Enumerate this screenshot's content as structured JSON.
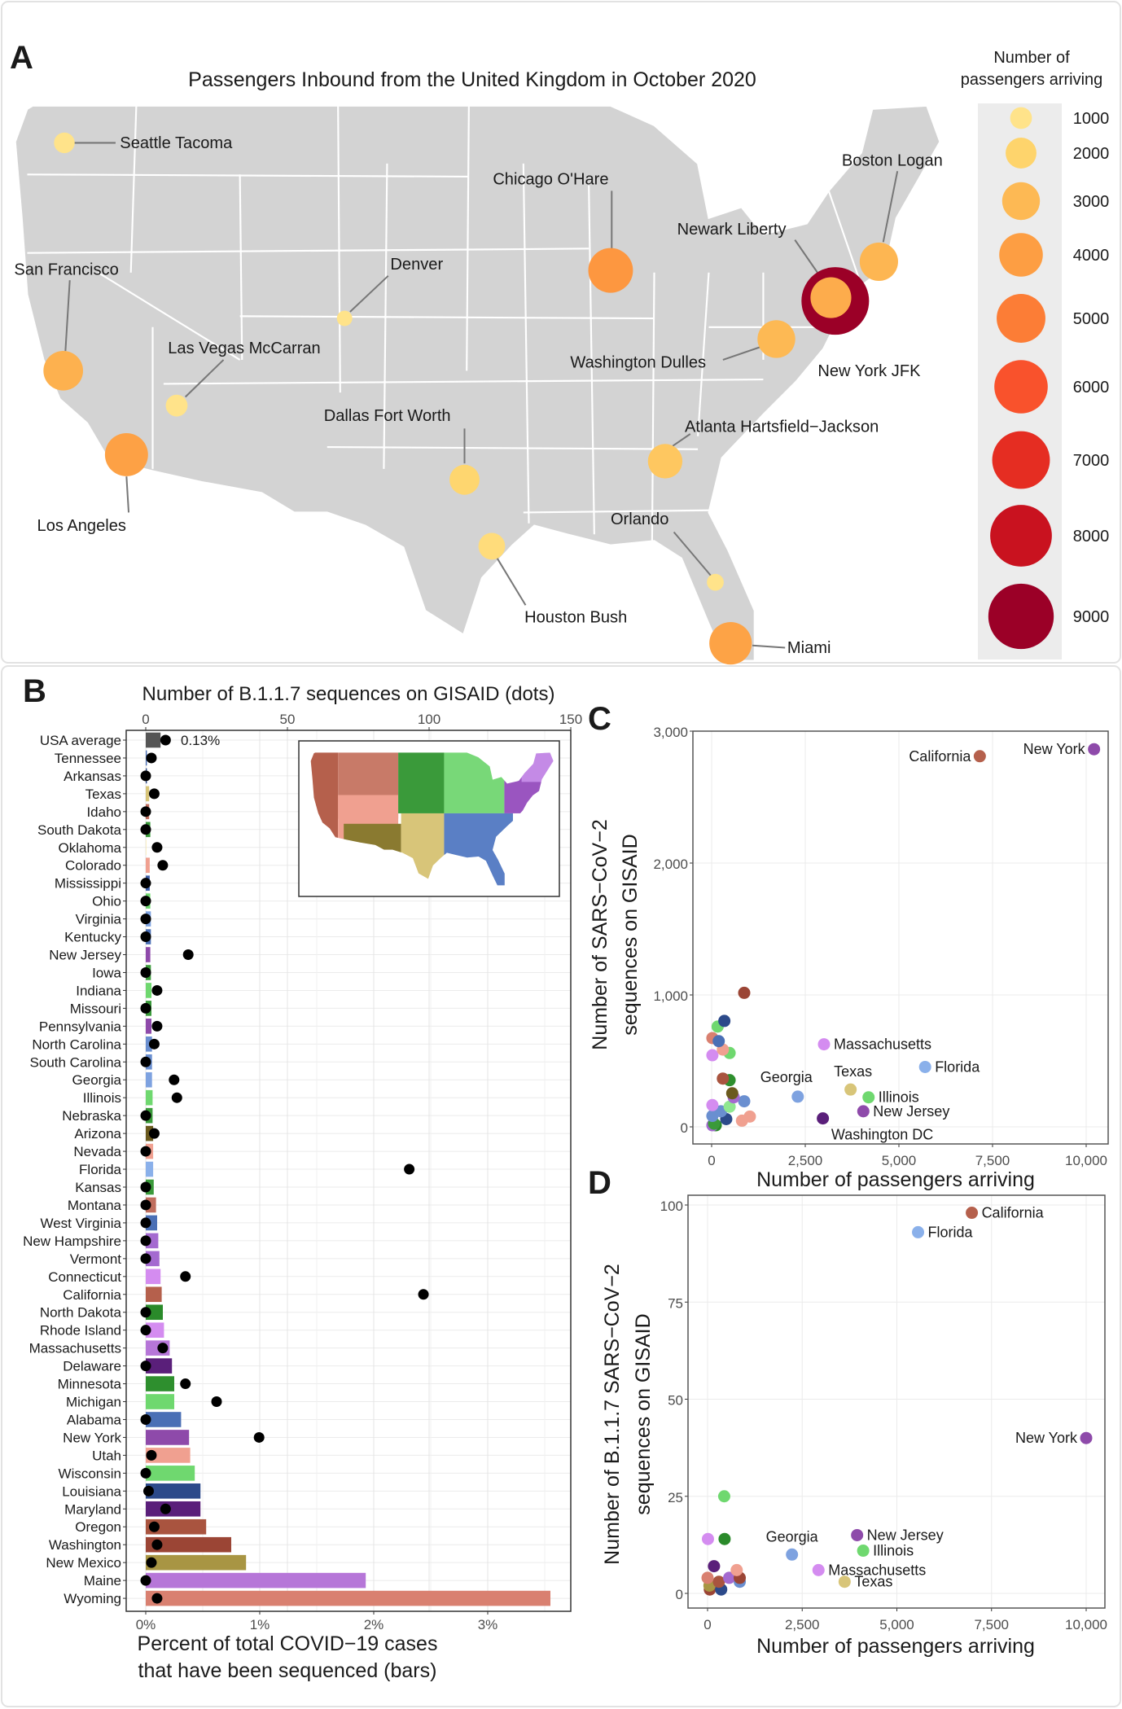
{
  "panel_a": {
    "letter": "A",
    "title": "Passengers Inbound from the United Kingdom in October 2020",
    "legend": {
      "title_line1": "Number of",
      "title_line2": "passengers arriving",
      "values": [
        1000,
        2000,
        3000,
        4000,
        5000,
        6000,
        7000,
        8000,
        9000
      ],
      "colors": [
        "#ffe38a",
        "#fed46c",
        "#fdb954",
        "#fd9e43",
        "#fc7d36",
        "#f9522c",
        "#e52d22",
        "#c9121f",
        "#9b0027"
      ]
    },
    "map_fill": "#d3d3d3",
    "airports": [
      {
        "name": "Seattle Tacoma",
        "value": 900
      },
      {
        "name": "San Francisco",
        "value": 3300
      },
      {
        "name": "Los Angeles",
        "value": 3900
      },
      {
        "name": "Las Vegas McCarran",
        "value": 1000
      },
      {
        "name": "Denver",
        "value": 500
      },
      {
        "name": "Dallas Fort Worth",
        "value": 1900
      },
      {
        "name": "Houston Bush",
        "value": 1500
      },
      {
        "name": "Chicago O'Hare",
        "value": 4200
      },
      {
        "name": "Atlanta Hartsfield−Jackson",
        "value": 2500
      },
      {
        "name": "Orlando",
        "value": 600
      },
      {
        "name": "Miami",
        "value": 3800
      },
      {
        "name": "Washington Dulles",
        "value": 3000
      },
      {
        "name": "Newark Liberty",
        "value": 3500
      },
      {
        "name": "New York JFK",
        "value": 9600
      },
      {
        "name": "Boston Logan",
        "value": 3100
      }
    ]
  },
  "chart_data": [
    {
      "panel": "B",
      "type": "bar",
      "orientation": "horizontal",
      "title": "Number of B.1.1.7 sequences on GISAID (dots)",
      "xlabel_line1": "Percent of total COVID−19 cases",
      "xlabel_line2": "that have been sequenced (bars)",
      "bar_ticks": [
        "0%",
        "1%",
        "2%",
        "3%"
      ],
      "bar_tick_values": [
        0,
        1,
        2,
        3
      ],
      "dot_ticks": [
        "0",
        "50",
        "100",
        "150"
      ],
      "dot_tick_values": [
        0,
        50,
        100,
        150
      ],
      "dot_range": [
        0,
        150
      ],
      "usa_label": "0.13%",
      "grid": true,
      "categories": [
        "USA average",
        "Tennessee",
        "Arkansas",
        "Texas",
        "Idaho",
        "South Dakota",
        "Oklahoma",
        "Colorado",
        "Mississippi",
        "Ohio",
        "Virginia",
        "Kentucky",
        "New Jersey",
        "Iowa",
        "Indiana",
        "Missouri",
        "Pennsylvania",
        "North Carolina",
        "South Carolina",
        "Georgia",
        "Illinois",
        "Nebraska",
        "Arizona",
        "Nevada",
        "Florida",
        "Kansas",
        "Montana",
        "West Virginia",
        "New Hampshire",
        "Vermont",
        "Connecticut",
        "California",
        "North Dakota",
        "Rhode Island",
        "Massachusetts",
        "Delaware",
        "Minnesota",
        "Michigan",
        "Alabama",
        "New York",
        "Utah",
        "Wisconsin",
        "Louisiana",
        "Maryland",
        "Oregon",
        "Washington",
        "New Mexico",
        "Maine",
        "Wyoming"
      ],
      "series": [
        {
          "name": "Percent of total COVID−19 cases that have been sequenced (bars)",
          "values": [
            0.13,
            0.01,
            0.01,
            0.03,
            0.03,
            0.04,
            0.0,
            0.035,
            0.035,
            0.04,
            0.045,
            0.045,
            0.04,
            0.045,
            0.05,
            0.05,
            0.05,
            0.055,
            0.055,
            0.055,
            0.06,
            0.06,
            0.065,
            0.065,
            0.065,
            0.07,
            0.09,
            0.1,
            0.11,
            0.12,
            0.13,
            0.14,
            0.15,
            0.16,
            0.21,
            0.23,
            0.25,
            0.25,
            0.31,
            0.38,
            0.39,
            0.43,
            0.48,
            0.48,
            0.53,
            0.75,
            0.88,
            1.93,
            3.55
          ]
        },
        {
          "name": "Number of B.1.1.7 sequences on GISAID (dots)",
          "values": [
            7,
            2,
            0,
            3,
            0,
            0,
            4,
            6,
            0,
            0,
            0,
            0,
            15,
            0,
            4,
            0,
            4,
            3,
            0,
            10,
            11,
            0,
            3,
            0,
            93,
            0,
            0,
            0,
            0,
            0,
            14,
            98,
            0,
            0,
            6,
            0,
            14,
            25,
            0,
            40,
            2,
            0,
            1,
            7,
            3,
            4,
            2,
            0,
            4
          ]
        }
      ],
      "colors": [
        "#555555",
        "#4a6fb5",
        "#2c4a8a",
        "#d8c579",
        "#c06e5e",
        "#3a9a3a",
        "#f7e28d",
        "#f0a090",
        "#3d5ea8",
        "#6fd86f",
        "#7ea2e0",
        "#4a6fb5",
        "#8e4aaa",
        "#3a9a3a",
        "#6fd86f",
        "#3a9a3a",
        "#8e4aaa",
        "#6a8fd0",
        "#6a8fd0",
        "#7ea2e0",
        "#6fd86f",
        "#3a9a3a",
        "#6b5a1e",
        "#f0a090",
        "#8ab0ea",
        "#3a9a3a",
        "#c06e5e",
        "#4a6fb5",
        "#a46ad0",
        "#a46ad0",
        "#d48cf0",
        "#b5604c",
        "#2a8a2a",
        "#d48cf0",
        "#b676d8",
        "#5a1f7a",
        "#2e8f2e",
        "#6fd86f",
        "#4a6fb5",
        "#8e4aaa",
        "#f0a090",
        "#6fd86f",
        "#2c4a8a",
        "#5a1f7a",
        "#a9543f",
        "#9b4535",
        "#a89543",
        "#b676d8",
        "#d98070"
      ]
    },
    {
      "panel": "C",
      "type": "scatter",
      "xlabel": "Number of passengers arriving",
      "ylabel_line1": "Number of SARS−CoV−2",
      "ylabel_line2": "sequences on GISAID",
      "xlim": [
        -500,
        10500
      ],
      "ylim": [
        -100,
        3000
      ],
      "xticks": [
        0,
        2500,
        5000,
        7500,
        10000
      ],
      "xtick_labels": [
        "0",
        "2,500",
        "5,000",
        "7,500",
        "10,000"
      ],
      "yticks": [
        0,
        1000,
        2000,
        3000
      ],
      "ytick_labels": [
        "0",
        "1,000",
        "2,000",
        "3,000"
      ],
      "grid": true,
      "points": [
        {
          "x": 7160,
          "y": 2810,
          "color": "#b5604c",
          "label": "California"
        },
        {
          "x": 10210,
          "y": 2863,
          "color": "#8e4aaa",
          "label": "New York"
        },
        {
          "x": 3000,
          "y": 626,
          "color": "#d48cf0",
          "label": "Massachusetts"
        },
        {
          "x": 5700,
          "y": 454,
          "color": "#8ab0ea",
          "label": "Florida"
        },
        {
          "x": 2300,
          "y": 229,
          "color": "#7ea2e0",
          "label": "Georgia"
        },
        {
          "x": 3710,
          "y": 283,
          "color": "#d8c579",
          "label": "Texas"
        },
        {
          "x": 4190,
          "y": 224,
          "color": "#6fd86f",
          "label": "Illinois"
        },
        {
          "x": 4050,
          "y": 118,
          "color": "#8e4aaa",
          "label": "New Jersey"
        },
        {
          "x": 2970,
          "y": 64,
          "color": "#5a1f7a",
          "label": "Washington DC"
        },
        {
          "x": 870,
          "y": 1016,
          "color": "#9b4535"
        },
        {
          "x": 340,
          "y": 803,
          "color": "#2c4a8a"
        },
        {
          "x": 160,
          "y": 760,
          "color": "#6fd86f"
        },
        {
          "x": 190,
          "y": 650,
          "color": "#4a6fb5"
        },
        {
          "x": 20,
          "y": 673,
          "color": "#d98070"
        },
        {
          "x": 300,
          "y": 586,
          "color": "#f0a090"
        },
        {
          "x": 480,
          "y": 560,
          "color": "#6fd86f"
        },
        {
          "x": 20,
          "y": 543,
          "color": "#d48cf0"
        },
        {
          "x": 300,
          "y": 366,
          "color": "#a9543f"
        },
        {
          "x": 480,
          "y": 354,
          "color": "#2e8f2e"
        },
        {
          "x": 550,
          "y": 255,
          "color": "#6b5a1e"
        },
        {
          "x": 590,
          "y": 224,
          "color": "#a46ad0"
        },
        {
          "x": 870,
          "y": 194,
          "color": "#6a8fd0"
        },
        {
          "x": 20,
          "y": 165,
          "color": "#d48cf0"
        },
        {
          "x": 480,
          "y": 153,
          "color": "#90e890"
        },
        {
          "x": 250,
          "y": 118,
          "color": "#6a8fd0"
        },
        {
          "x": 20,
          "y": 83,
          "color": "#6a8fd0"
        },
        {
          "x": 390,
          "y": 59,
          "color": "#2c4a8a"
        },
        {
          "x": 810,
          "y": 47,
          "color": "#f0a090"
        },
        {
          "x": 1020,
          "y": 78,
          "color": "#f0a090"
        },
        {
          "x": 65,
          "y": 24,
          "color": "#3a9a3a"
        },
        {
          "x": 20,
          "y": 12,
          "color": "#a46ad0"
        },
        {
          "x": 110,
          "y": 12,
          "color": "#2a8a2a"
        }
      ]
    },
    {
      "panel": "D",
      "type": "scatter",
      "xlabel": "Number of passengers arriving",
      "ylabel_line1": "Number of B.1.1.7 SARS−CoV−2",
      "ylabel_line2": "sequences on GISAID",
      "xlim": [
        -500,
        10500
      ],
      "ylim": [
        -3,
        103
      ],
      "xticks": [
        0,
        2500,
        5000,
        7500,
        10000
      ],
      "xtick_labels": [
        "0",
        "2,500",
        "5,000",
        "7,500",
        "10,000"
      ],
      "yticks": [
        0,
        25,
        50,
        75,
        100
      ],
      "ytick_labels": [
        "0",
        "25",
        "50",
        "75",
        "100"
      ],
      "grid": true,
      "points": [
        {
          "x": 6980,
          "y": 98,
          "color": "#b5604c",
          "label": "California"
        },
        {
          "x": 5560,
          "y": 93,
          "color": "#8ab0ea",
          "label": "Florida"
        },
        {
          "x": 10000,
          "y": 40,
          "color": "#8e4aaa",
          "label": "New York"
        },
        {
          "x": 2230,
          "y": 10,
          "color": "#7ea2e0",
          "label": "Georgia"
        },
        {
          "x": 3950,
          "y": 15,
          "color": "#8e4aaa",
          "label": "New Jersey"
        },
        {
          "x": 4110,
          "y": 11,
          "color": "#6fd86f",
          "label": "Illinois"
        },
        {
          "x": 2930,
          "y": 6,
          "color": "#d48cf0",
          "label": "Massachusetts"
        },
        {
          "x": 3620,
          "y": 3,
          "color": "#d8c579",
          "label": "Texas"
        },
        {
          "x": 440,
          "y": 25,
          "color": "#6fd86f"
        },
        {
          "x": 10,
          "y": 14,
          "color": "#d48cf0"
        },
        {
          "x": 450,
          "y": 14,
          "color": "#2a8a2a"
        },
        {
          "x": 170,
          "y": 7,
          "color": "#5a1f7a"
        },
        {
          "x": 770,
          "y": 6,
          "color": "#f0a090"
        },
        {
          "x": 0,
          "y": 4,
          "color": "#d98070"
        },
        {
          "x": 850,
          "y": 4,
          "color": "#9b4535"
        },
        {
          "x": 570,
          "y": 4,
          "color": "#a46ad0"
        },
        {
          "x": 850,
          "y": 3,
          "color": "#6a8fd0"
        },
        {
          "x": 300,
          "y": 3,
          "color": "#a9543f"
        },
        {
          "x": 50,
          "y": 2,
          "color": "#a89543"
        },
        {
          "x": 360,
          "y": 1,
          "color": "#2c4a8a"
        },
        {
          "x": 60,
          "y": 1,
          "color": "#9b4535"
        },
        {
          "x": 280,
          "y": 2,
          "color": "#f0a090"
        }
      ]
    }
  ],
  "panel_letters": {
    "b": "B",
    "c": "C",
    "d": "D"
  }
}
